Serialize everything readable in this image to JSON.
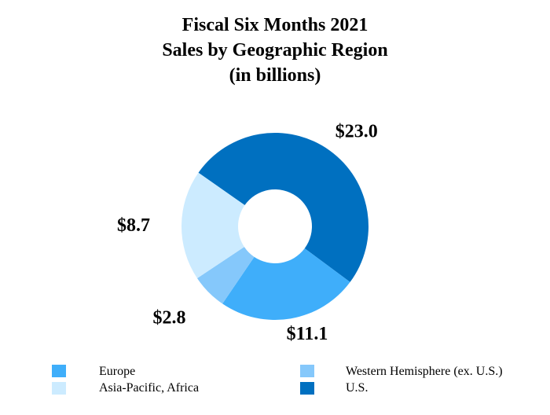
{
  "chart_data": {
    "type": "pie",
    "title": [
      "Fiscal Six Months 2021",
      "Sales by Geographic Region",
      "(in billions)"
    ],
    "slices": [
      {
        "name": "U.S.",
        "value": 23.0,
        "label": "$23.0",
        "color": "#0070C0"
      },
      {
        "name": "Europe",
        "value": 11.1,
        "label": "$11.1",
        "color": "#3FAEFA"
      },
      {
        "name": "Western Hemisphere (ex. U.S.)",
        "value": 2.8,
        "label": "$2.8",
        "color": "#85C8FB"
      },
      {
        "name": "Asia-Pacific, Africa",
        "value": 8.7,
        "label": "$8.7",
        "color": "#CCEBFF"
      }
    ],
    "legend": [
      {
        "label": "Europe",
        "color": "#3FAEFA"
      },
      {
        "label": "Western Hemisphere (ex. U.S.)",
        "color": "#85C8FB"
      },
      {
        "label": "Asia-Pacific, Africa",
        "color": "#CCEBFF"
      },
      {
        "label": "U.S.",
        "color": "#0070C0"
      }
    ],
    "legend_position": "bottom"
  }
}
